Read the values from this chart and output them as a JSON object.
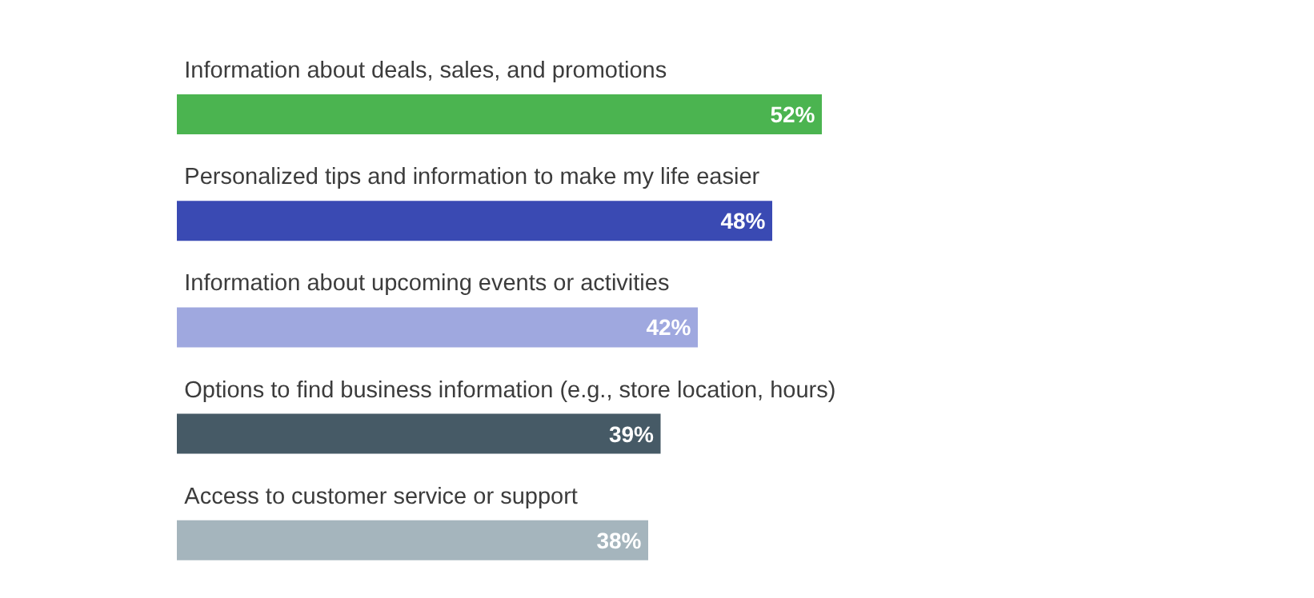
{
  "chart_data": {
    "type": "bar",
    "orientation": "horizontal",
    "categories": [
      "Information about deals, sales, and promotions",
      "Personalized tips and information to make my life easier",
      "Information about upcoming events or activities",
      "Options to find business information (e.g., store location, hours)",
      "Access to customer service or support"
    ],
    "values": [
      52,
      48,
      42,
      39,
      38
    ],
    "colors": [
      "#4bb450",
      "#3a4ab3",
      "#9fa8df",
      "#465a66",
      "#a5b5bd"
    ],
    "value_labels": [
      "52%",
      "48%",
      "42%",
      "39%",
      "38%"
    ]
  }
}
